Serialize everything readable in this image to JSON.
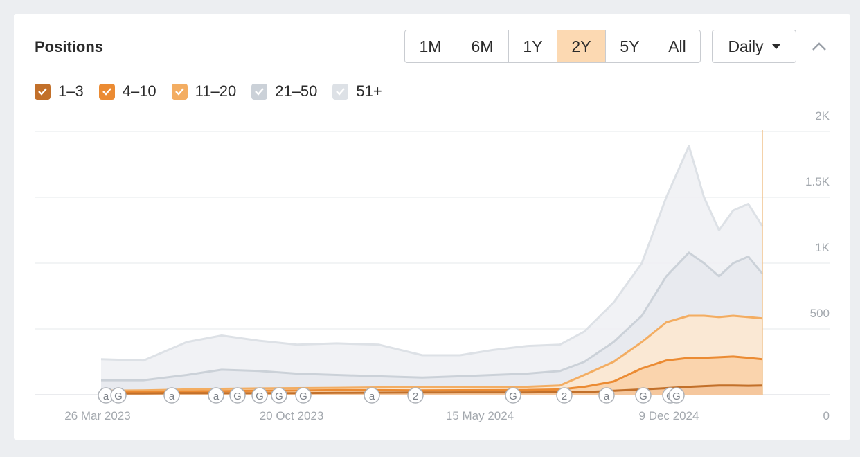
{
  "panel": {
    "title": "Positions"
  },
  "ranges": [
    {
      "label": "1M",
      "active": false
    },
    {
      "label": "6M",
      "active": false
    },
    {
      "label": "1Y",
      "active": false
    },
    {
      "label": "2Y",
      "active": true
    },
    {
      "label": "5Y",
      "active": false
    },
    {
      "label": "All",
      "active": false
    }
  ],
  "interval": {
    "label": "Daily",
    "icon": "caret-down-icon"
  },
  "collapse": {
    "icon": "chevron-up-icon"
  },
  "legend": [
    {
      "label": "1–3",
      "color": "#c2702a",
      "checked": true
    },
    {
      "label": "4–10",
      "color": "#eb8b33",
      "checked": true
    },
    {
      "label": "11–20",
      "color": "#f3ad62",
      "checked": true
    },
    {
      "label": "21–50",
      "color": "#cbd1d8",
      "checked": true
    },
    {
      "label": "51+",
      "color": "#dde1e6",
      "checked": true
    }
  ],
  "chart_data": {
    "type": "area",
    "x_tick_labels": [
      "26 Mar 2023",
      "20 Oct 2023",
      "15 May 2024",
      "9 Dec 2024"
    ],
    "y_tick_labels": [
      "0",
      "500",
      "1K",
      "1.5K",
      "2K"
    ],
    "ylim": [
      0,
      2000
    ],
    "x": [
      "2023-03-26",
      "2023-05-10",
      "2023-06-25",
      "2023-08-01",
      "2023-09-10",
      "2023-10-20",
      "2023-12-01",
      "2024-01-15",
      "2024-03-01",
      "2024-04-10",
      "2024-05-15",
      "2024-06-20",
      "2024-07-25",
      "2024-08-20",
      "2024-09-20",
      "2024-10-20",
      "2024-11-15",
      "2024-12-09",
      "2024-12-25",
      "2025-01-10",
      "2025-01-25",
      "2025-02-10",
      "2025-02-25"
    ],
    "series": [
      {
        "name": "1–3",
        "color": "#c2702a",
        "stacked_total": [
          10,
          10,
          12,
          12,
          12,
          12,
          14,
          16,
          17,
          18,
          18,
          18,
          20,
          20,
          30,
          40,
          50,
          60,
          65,
          70,
          70,
          68,
          70
        ]
      },
      {
        "name": "4–10",
        "color": "#eb8b33",
        "stacked_total": [
          15,
          20,
          25,
          28,
          30,
          32,
          35,
          35,
          33,
          34,
          35,
          36,
          40,
          60,
          100,
          200,
          260,
          280,
          280,
          285,
          290,
          280,
          270
        ]
      },
      {
        "name": "11–20",
        "color": "#f3ad62",
        "stacked_total": [
          30,
          33,
          40,
          45,
          48,
          50,
          52,
          55,
          55,
          55,
          58,
          60,
          70,
          150,
          250,
          400,
          550,
          600,
          600,
          590,
          600,
          590,
          580
        ]
      },
      {
        "name": "21–50",
        "color": "#cbd1d8",
        "stacked_total": [
          110,
          110,
          150,
          190,
          180,
          160,
          150,
          140,
          130,
          140,
          150,
          160,
          180,
          250,
          400,
          600,
          900,
          1080,
          1000,
          900,
          1000,
          1050,
          920
        ]
      },
      {
        "name": "51+",
        "color": "#dde1e6",
        "stacked_total": [
          270,
          260,
          400,
          450,
          410,
          380,
          390,
          380,
          300,
          300,
          340,
          370,
          380,
          480,
          700,
          1000,
          1500,
          1890,
          1500,
          1250,
          1400,
          1450,
          1280
        ]
      }
    ],
    "event_markers": [
      "a",
      "G",
      "a",
      "a",
      "G",
      "G",
      "G",
      "G",
      "a",
      "2",
      "G",
      "2",
      "a",
      "G",
      "G",
      "G"
    ],
    "grid": true,
    "legend_position": "top-left"
  }
}
